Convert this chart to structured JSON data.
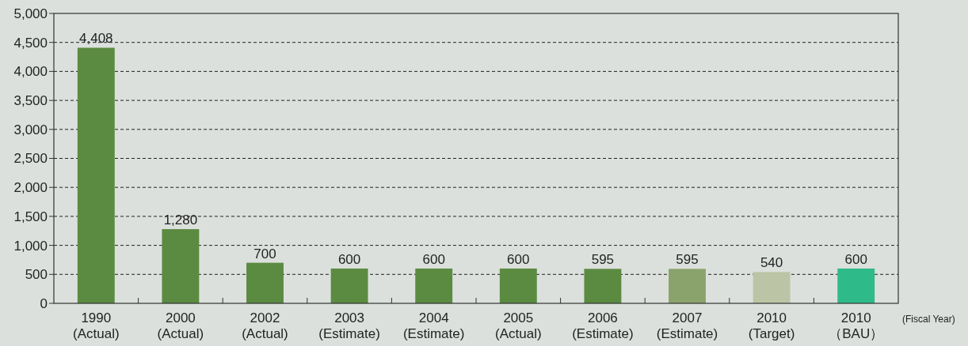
{
  "chart_data": {
    "type": "bar",
    "xlabel": "(Fiscal Year)",
    "categories": [
      "1990\n(Actual)",
      "2000\n(Actual)",
      "2002\n(Actual)",
      "2003\n(Estimate)",
      "2004\n(Estimate)",
      "2005\n(Actual)",
      "2006\n(Estimate)",
      "2007\n(Estimate)",
      "2010\n(Target)",
      "2010\n（BAU）"
    ],
    "values": [
      4408,
      1280,
      700,
      600,
      600,
      600,
      595,
      595,
      540,
      600
    ],
    "colors": [
      "#5b8b41",
      "#5b8b41",
      "#5b8b41",
      "#5b8b41",
      "#5b8b41",
      "#5b8b41",
      "#5b8b41",
      "#8aa36c",
      "#bbc5a6",
      "#2fba8a"
    ],
    "value_labels": [
      "4,408",
      "1,280",
      "700",
      "600",
      "600",
      "600",
      "595",
      "595",
      "540",
      "600"
    ],
    "ylim": [
      0,
      5000
    ],
    "yticks": [
      {
        "value": 0,
        "label": "0"
      },
      {
        "value": 500,
        "label": "500"
      },
      {
        "value": 1000,
        "label": "1,000"
      },
      {
        "value": 1500,
        "label": "1,500"
      },
      {
        "value": 2000,
        "label": "2,000"
      },
      {
        "value": 2500,
        "label": "2,500"
      },
      {
        "value": 3000,
        "label": "3,000"
      },
      {
        "value": 3500,
        "label": "3,500"
      },
      {
        "value": 4000,
        "label": "4,000"
      },
      {
        "value": 4500,
        "label": "4,500"
      },
      {
        "value": 5000,
        "label": "5,000"
      }
    ],
    "grid": "y"
  }
}
